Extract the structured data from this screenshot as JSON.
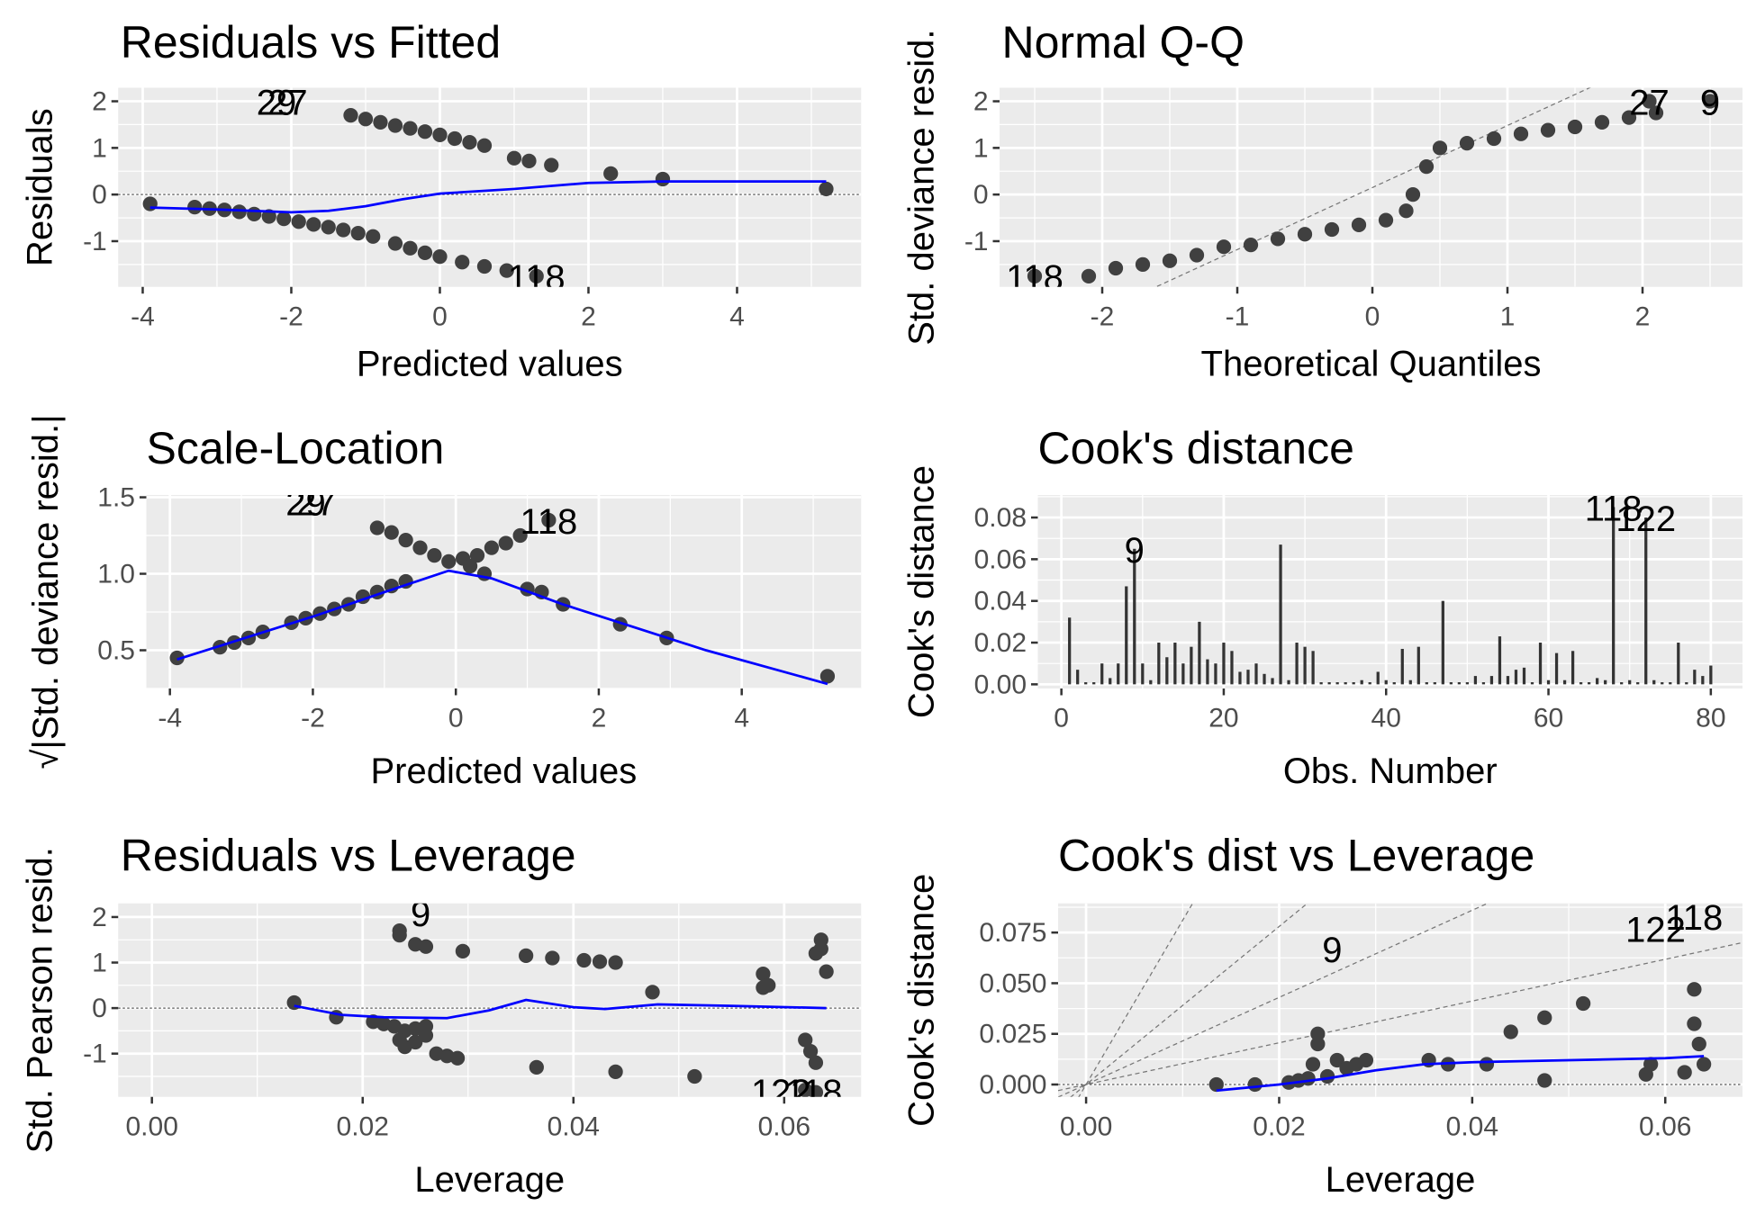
{
  "chart_data": [
    {
      "type": "scatter",
      "title": "Residuals vs Fitted",
      "xlabel": "Predicted values",
      "ylabel": "Residuals",
      "xlim": [
        -4.33,
        5.67
      ],
      "ylim": [
        -1.98,
        2.29
      ],
      "xticks": [
        -4,
        -2,
        0,
        2,
        4
      ],
      "yticks": [
        -1,
        0,
        1,
        2
      ],
      "grid": true,
      "hline": 0,
      "point_color": "#404040",
      "points": {
        "x": [
          -1.2,
          -1.0,
          -0.8,
          -0.6,
          -0.4,
          -0.2,
          0,
          0.2,
          0.4,
          0.6,
          1.0,
          1.2,
          1.5,
          2.3,
          3.0,
          5.2,
          -3.9,
          -3.3,
          -3.1,
          -2.9,
          -2.7,
          -2.5,
          -2.3,
          -2.1,
          -1.9,
          -1.7,
          -1.5,
          -1.3,
          -1.1,
          -0.9,
          -0.6,
          -0.4,
          -0.2,
          0,
          0.3,
          0.6,
          0.9,
          1.3
        ],
        "y": [
          1.7,
          1.62,
          1.55,
          1.48,
          1.42,
          1.35,
          1.28,
          1.2,
          1.12,
          1.05,
          0.78,
          0.72,
          0.63,
          0.45,
          0.33,
          0.12,
          -0.2,
          -0.27,
          -0.3,
          -0.33,
          -0.37,
          -0.42,
          -0.47,
          -0.52,
          -0.58,
          -0.64,
          -0.7,
          -0.76,
          -0.83,
          -0.9,
          -1.05,
          -1.15,
          -1.25,
          -1.33,
          -1.45,
          -1.54,
          -1.63,
          -1.75
        ]
      },
      "smooth": {
        "color": "#0000ff",
        "x": [
          -3.9,
          -3,
          -2,
          -1.5,
          -1,
          -0.5,
          0,
          1,
          2,
          3,
          4,
          5.2
        ],
        "y": [
          -0.28,
          -0.32,
          -0.38,
          -0.35,
          -0.25,
          -0.1,
          0.02,
          0.12,
          0.25,
          0.28,
          0.28,
          0.28
        ]
      },
      "point_labels": [
        {
          "text": "29",
          "x": -2.2,
          "y": 2.0
        },
        {
          "text": "27",
          "x": -2.05,
          "y": 2.0
        },
        {
          "text": "118",
          "x": 1.3,
          "y": -1.75
        }
      ]
    },
    {
      "type": "scatter",
      "title": "Normal Q-Q",
      "xlabel": "Theoretical Quantiles",
      "ylabel": "Std. deviance resid.",
      "xlim": [
        -2.76,
        2.74
      ],
      "ylim": [
        -1.98,
        2.29
      ],
      "xticks": [
        -2,
        -1,
        0,
        1,
        2
      ],
      "yticks": [
        -1,
        0,
        1,
        2
      ],
      "grid": true,
      "point_color": "#404040",
      "points": {
        "x": [
          -2.5,
          -2.1,
          -1.9,
          -1.7,
          -1.5,
          -1.3,
          -1.1,
          -0.9,
          -0.7,
          -0.5,
          -0.3,
          -0.1,
          0.1,
          0.25,
          0.3,
          0.4,
          0.5,
          0.7,
          0.9,
          1.1,
          1.3,
          1.5,
          1.7,
          1.9,
          2.1,
          2.05,
          2.5
        ],
        "y": [
          -1.75,
          -1.75,
          -1.58,
          -1.5,
          -1.42,
          -1.3,
          -1.12,
          -1.08,
          -0.95,
          -0.85,
          -0.75,
          -0.65,
          -0.55,
          -0.35,
          0,
          0.6,
          1.0,
          1.1,
          1.2,
          1.3,
          1.38,
          1.45,
          1.55,
          1.65,
          1.75,
          2.0,
          2.0
        ]
      },
      "reference_line": {
        "intercept": 0.15,
        "slope": 1.33
      },
      "point_labels": [
        {
          "text": "118",
          "x": -2.5,
          "y": -1.75
        },
        {
          "text": "27",
          "x": 2.05,
          "y": 2.0
        },
        {
          "text": "9",
          "x": 2.5,
          "y": 2.0
        }
      ]
    },
    {
      "type": "scatter",
      "title": "Scale-Location",
      "xlabel": "Predicted values",
      "ylabel": "√|Std. deviance resid.|",
      "xlim": [
        -4.33,
        5.67
      ],
      "ylim": [
        0.25,
        1.515
      ],
      "xticks": [
        -4,
        -2,
        0,
        2,
        4
      ],
      "yticks": [
        0.5,
        {
          "value": 1,
          "label": "1.0"
        },
        1.5
      ],
      "grid": true,
      "point_color": "#404040",
      "points": {
        "x": [
          -3.9,
          -3.3,
          -3.1,
          -2.9,
          -2.7,
          -2.3,
          -2.1,
          -1.9,
          -1.7,
          -1.5,
          -1.3,
          -1.1,
          -0.9,
          -0.7,
          -1.1,
          -0.9,
          -0.7,
          -0.5,
          -0.3,
          -0.1,
          0.1,
          0.3,
          0.5,
          0.7,
          0.9,
          1.3,
          0.2,
          0.4,
          1.0,
          1.2,
          1.5,
          2.3,
          2.95,
          5.2
        ],
        "y": [
          0.45,
          0.52,
          0.55,
          0.58,
          0.62,
          0.68,
          0.71,
          0.74,
          0.77,
          0.8,
          0.85,
          0.88,
          0.92,
          0.95,
          1.3,
          1.27,
          1.22,
          1.17,
          1.12,
          1.08,
          1.1,
          1.12,
          1.17,
          1.2,
          1.25,
          1.35,
          1.05,
          1.0,
          0.9,
          0.88,
          0.8,
          0.67,
          0.58,
          0.33
        ]
      },
      "smooth": {
        "color": "#0000ff",
        "x": [
          -3.9,
          -2,
          -1,
          -0.1,
          0.5,
          1.5,
          2.5,
          3.5,
          5.2
        ],
        "y": [
          0.44,
          0.72,
          0.88,
          1.02,
          0.97,
          0.8,
          0.65,
          0.5,
          0.28
        ]
      },
      "point_labels": [
        {
          "text": "29",
          "x": -2.1,
          "y": 1.47
        },
        {
          "text": "27",
          "x": -1.95,
          "y": 1.47
        },
        {
          "text": "118",
          "x": 1.3,
          "y": 1.35
        }
      ]
    },
    {
      "type": "bar",
      "title": "Cook's distance",
      "xlabel": "Obs. Number",
      "ylabel": "Cook's distance",
      "xlim": [
        -2.9,
        83.9
      ],
      "ylim": [
        -0.002,
        0.0908
      ],
      "xticks": [
        0,
        20,
        40,
        60,
        80
      ],
      "yticks": [
        {
          "value": 0,
          "label": "0.00"
        },
        {
          "value": 0.02,
          "label": "0.02"
        },
        {
          "value": 0.04,
          "label": "0.04"
        },
        {
          "value": 0.06,
          "label": "0.06"
        },
        {
          "value": 0.08,
          "label": "0.08"
        }
      ],
      "grid": true,
      "bar_color": "#333333",
      "x": [
        1,
        2,
        3,
        4,
        5,
        6,
        7,
        8,
        9,
        10,
        11,
        12,
        13,
        14,
        15,
        16,
        17,
        18,
        19,
        20,
        21,
        22,
        23,
        24,
        25,
        26,
        27,
        28,
        29,
        30,
        31,
        32,
        33,
        34,
        35,
        36,
        37,
        38,
        39,
        40,
        41,
        42,
        43,
        44,
        45,
        46,
        47,
        48,
        49,
        50,
        51,
        52,
        53,
        54,
        55,
        56,
        57,
        58,
        59,
        60,
        61,
        62,
        63,
        64,
        65,
        66,
        67,
        68,
        69,
        70,
        71,
        72,
        73,
        74,
        75,
        76,
        77,
        78,
        79,
        80
      ],
      "values": [
        0.032,
        0.007,
        0.001,
        0.001,
        0.01,
        0.003,
        0.01,
        0.047,
        0.065,
        0.01,
        0.002,
        0.02,
        0.013,
        0.02,
        0.01,
        0.018,
        0.03,
        0.012,
        0.01,
        0.02,
        0.016,
        0.006,
        0.007,
        0.01,
        0.005,
        0.003,
        0.067,
        0.002,
        0.02,
        0.018,
        0.016,
        0.001,
        0.001,
        0.001,
        0.001,
        0.001,
        0.002,
        0.001,
        0.006,
        0.002,
        0.001,
        0.017,
        0.002,
        0.018,
        0.001,
        0.001,
        0.04,
        0.001,
        0.001,
        0.001,
        0.004,
        0.001,
        0.004,
        0.023,
        0.004,
        0.007,
        0.008,
        0.001,
        0.02,
        0.002,
        0.015,
        0.002,
        0.016,
        0.001,
        0.001,
        0.003,
        0.002,
        0.085,
        0.001,
        0.002,
        0.001,
        0.08,
        0.002,
        0.001,
        0.001,
        0.02,
        0.001,
        0.007,
        0.004,
        0.009
      ],
      "point_labels": [
        {
          "text": "9",
          "x": 9,
          "y": 0.065
        },
        {
          "text": "118",
          "x": 68,
          "y": 0.085
        },
        {
          "text": "122",
          "x": 72,
          "y": 0.08
        }
      ]
    },
    {
      "type": "scatter",
      "title": "Residuals vs Leverage",
      "xlabel": "Leverage",
      "ylabel": "Std. Pearson resid.",
      "xlim": [
        -0.0032,
        0.0673
      ],
      "ylim": [
        -1.95,
        2.3
      ],
      "xticks": [
        {
          "value": 0,
          "label": "0.00"
        },
        {
          "value": 0.02,
          "label": "0.02"
        },
        {
          "value": 0.04,
          "label": "0.04"
        },
        {
          "value": 0.06,
          "label": "0.06"
        }
      ],
      "yticks": [
        -1,
        0,
        1,
        2
      ],
      "grid": true,
      "hline": 0,
      "point_color": "#404040",
      "points": {
        "x": [
          0.0135,
          0.0175,
          0.021,
          0.022,
          0.023,
          0.024,
          0.025,
          0.026,
          0.0235,
          0.024,
          0.025,
          0.026,
          0.0235,
          0.0235,
          0.025,
          0.026,
          0.027,
          0.028,
          0.029,
          0.0295,
          0.0355,
          0.0365,
          0.038,
          0.041,
          0.0425,
          0.044,
          0.044,
          0.0475,
          0.0515,
          0.058,
          0.058,
          0.0585,
          0.062,
          0.0625,
          0.063,
          0.063,
          0.0635,
          0.064,
          0.0635,
          0.062,
          0.063
        ],
        "y": [
          0.12,
          -0.2,
          -0.3,
          -0.35,
          -0.4,
          -0.5,
          -0.45,
          -0.4,
          -0.7,
          -0.85,
          -0.75,
          -0.6,
          1.7,
          1.6,
          1.4,
          1.35,
          -1.0,
          -1.05,
          -1.1,
          1.25,
          1.15,
          -1.3,
          1.1,
          1.05,
          1.02,
          1.0,
          -1.4,
          0.35,
          -1.5,
          0.75,
          0.45,
          0.5,
          -0.7,
          -0.95,
          -1.2,
          1.2,
          1.5,
          0.8,
          1.3,
          -1.8,
          -1.85
        ]
      },
      "smooth": {
        "color": "#0000ff",
        "x": [
          0.0135,
          0.018,
          0.022,
          0.028,
          0.032,
          0.0355,
          0.04,
          0.043,
          0.048,
          0.055,
          0.064
        ],
        "y": [
          0.05,
          -0.15,
          -0.2,
          -0.22,
          -0.05,
          0.18,
          0.02,
          -0.02,
          0.08,
          0.05,
          0.0
        ]
      },
      "point_labels": [
        {
          "text": "9",
          "x": 0.0255,
          "y": 2.1
        },
        {
          "text": "122",
          "x": 0.0597,
          "y": -1.82
        },
        {
          "text": "118",
          "x": 0.0628,
          "y": -1.82
        }
      ]
    },
    {
      "type": "scatter",
      "title": "Cook's dist vs Leverage",
      "xlabel": "Leverage",
      "ylabel": "Cook's distance",
      "xlim": [
        -0.0029,
        0.068
      ],
      "ylim": [
        -0.0061,
        0.0894
      ],
      "xticks": [
        {
          "value": 0,
          "label": "0.00"
        },
        {
          "value": 0.02,
          "label": "0.02"
        },
        {
          "value": 0.04,
          "label": "0.04"
        },
        {
          "value": 0.06,
          "label": "0.06"
        }
      ],
      "yticks": [
        {
          "value": 0,
          "label": "0.000"
        },
        {
          "value": 0.025,
          "label": "0.025"
        },
        {
          "value": 0.05,
          "label": "0.050"
        },
        {
          "value": 0.075,
          "label": "0.075"
        }
      ],
      "grid": true,
      "hline": 0,
      "point_color": "#404040",
      "points": {
        "x": [
          0.0135,
          0.0175,
          0.021,
          0.022,
          0.023,
          0.0235,
          0.024,
          0.024,
          0.025,
          0.026,
          0.027,
          0.028,
          0.029,
          0.0355,
          0.0375,
          0.0415,
          0.044,
          0.0475,
          0.0475,
          0.0515,
          0.058,
          0.0585,
          0.062,
          0.063,
          0.063,
          0.0635,
          0.064
        ],
        "y": [
          0,
          0,
          0.001,
          0.002,
          0.003,
          0.01,
          0.02,
          0.025,
          0.004,
          0.012,
          0.008,
          0.01,
          0.012,
          0.012,
          0.01,
          0.01,
          0.026,
          0.033,
          0.002,
          0.04,
          0.005,
          0.01,
          0.006,
          0.047,
          0.03,
          0.02,
          0.01
        ]
      },
      "smooth": {
        "color": "#0000ff",
        "x": [
          0.0135,
          0.02,
          0.025,
          0.03,
          0.035,
          0.04,
          0.05,
          0.06,
          0.064
        ],
        "y": [
          -0.003,
          0.0,
          0.003,
          0.007,
          0.01,
          0.011,
          0.012,
          0.013,
          0.014
        ]
      },
      "reference_slopes": [
        8.1,
        3.9,
        2.15,
        1.03
      ],
      "point_labels": [
        {
          "text": "9",
          "x": 0.0255,
          "y": 0.067
        },
        {
          "text": "122",
          "x": 0.059,
          "y": 0.077
        },
        {
          "text": "118",
          "x": 0.063,
          "y": 0.083
        }
      ]
    }
  ]
}
